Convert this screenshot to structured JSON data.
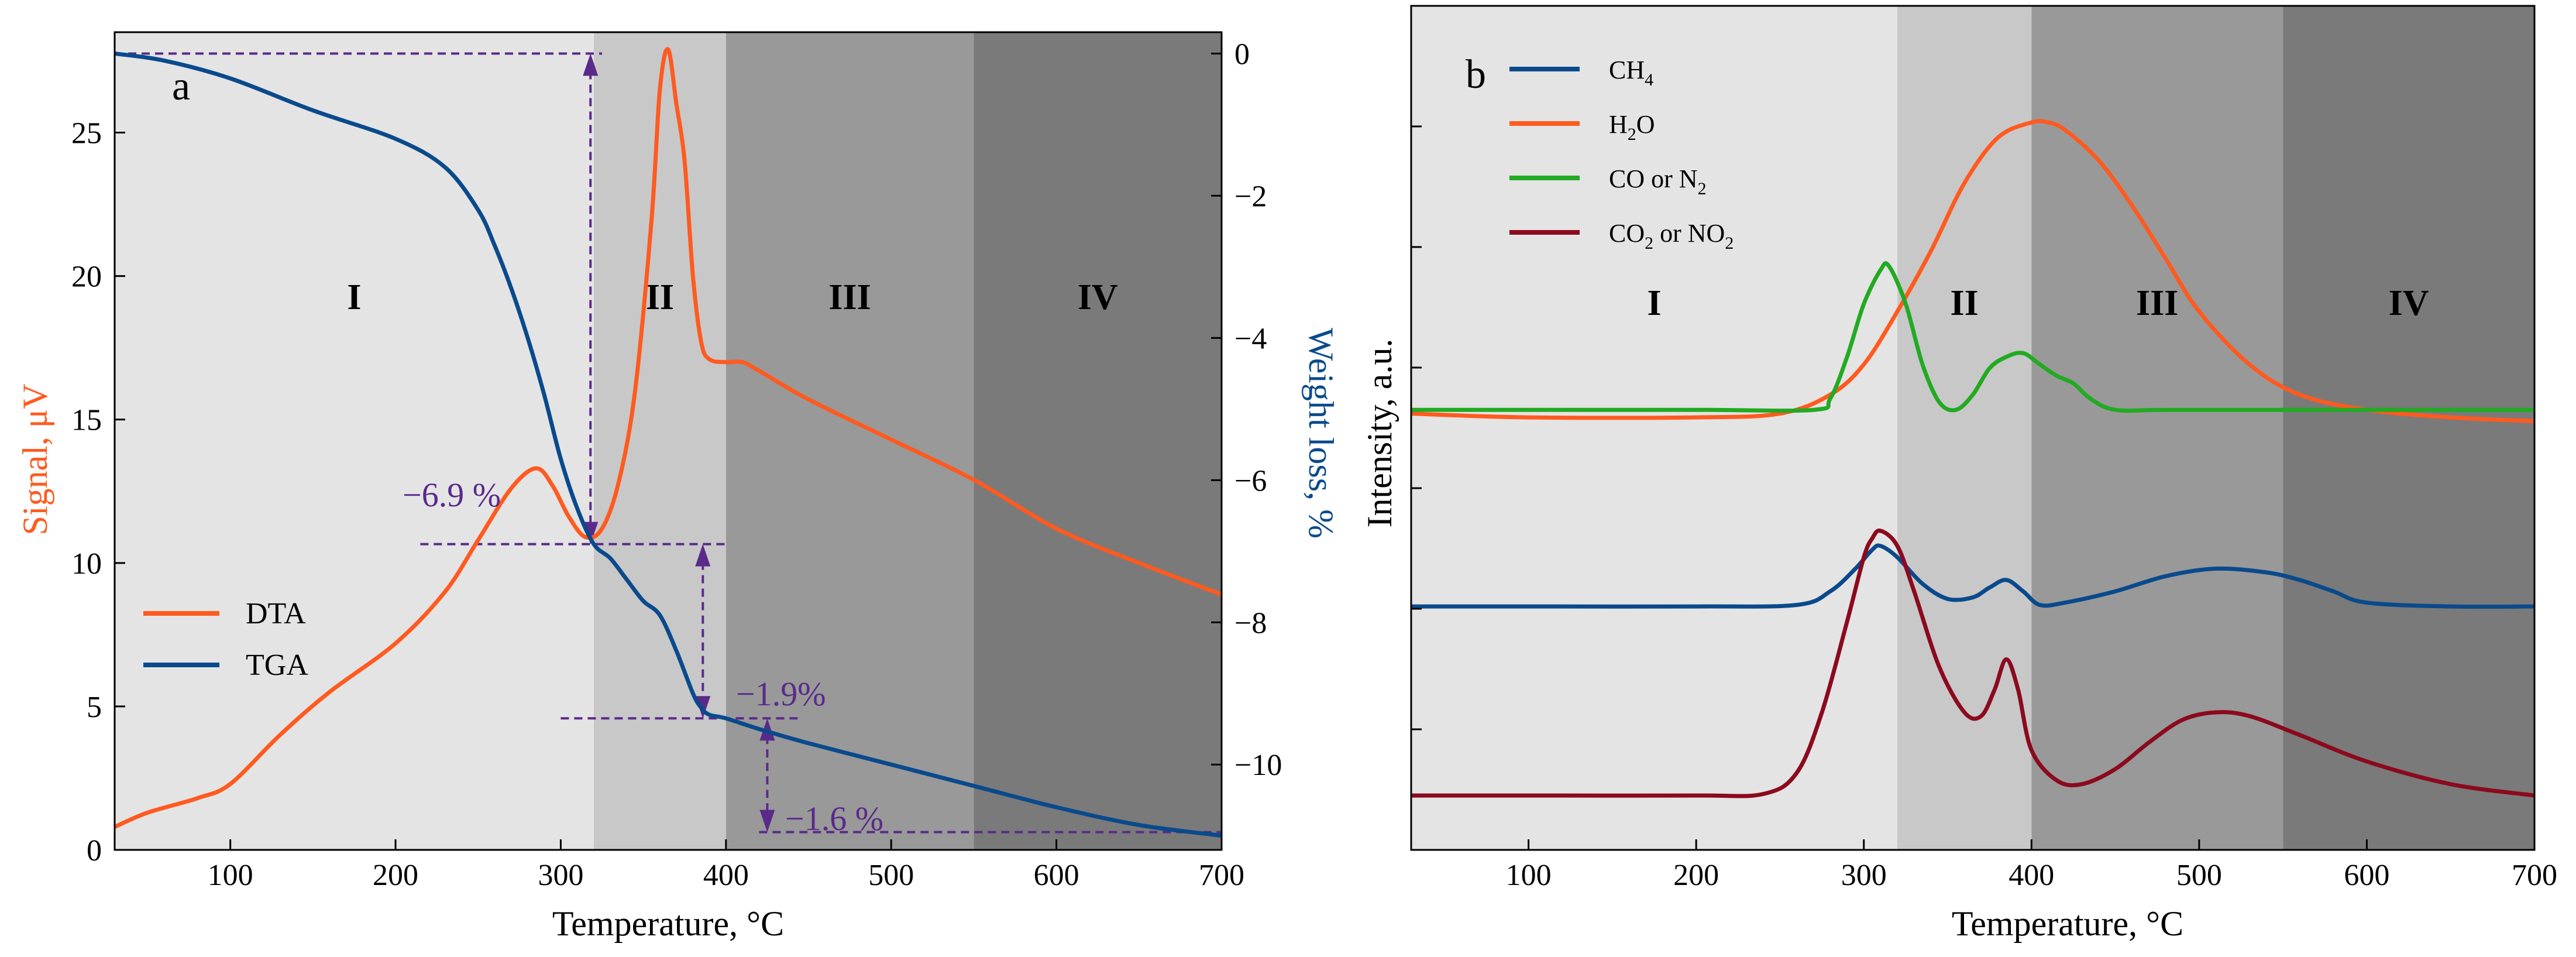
{
  "chart_data": [
    {
      "panel": "a",
      "type": "line",
      "xlabel": "Temperature, °C",
      "ylabel_left": "Signal, μV",
      "ylabel_right": "Weight loss, %",
      "xlim": [
        30,
        700
      ],
      "ylim_left": [
        0,
        28.5
      ],
      "ylim_right": [
        -11.2,
        0.3
      ],
      "x_ticks": [
        100,
        200,
        300,
        400,
        500,
        600,
        700
      ],
      "y_ticks_left": [
        0,
        5,
        10,
        15,
        20,
        25
      ],
      "y_ticks_right": [
        0,
        -2,
        -4,
        -6,
        -8,
        -10
      ],
      "regions": [
        {
          "label": "I",
          "from": 30,
          "to": 320,
          "color": "#e4e4e4"
        },
        {
          "label": "II",
          "from": 320,
          "to": 400,
          "color": "#c8c8c8"
        },
        {
          "label": "III",
          "from": 400,
          "to": 550,
          "color": "#999999"
        },
        {
          "label": "IV",
          "from": 550,
          "to": 700,
          "color": "#7a7a7a"
        }
      ],
      "legend": [
        "DTA",
        "TGA"
      ],
      "series": [
        {
          "name": "DTA",
          "axis": "left",
          "color": "#ff5a1f",
          "x": [
            30,
            50,
            80,
            100,
            130,
            160,
            200,
            230,
            250,
            270,
            285,
            295,
            305,
            315,
            325,
            335,
            345,
            355,
            360,
            365,
            370,
            375,
            380,
            385,
            390,
            400,
            410,
            420,
            450,
            500,
            550,
            600,
            650,
            700
          ],
          "y": [
            0.8,
            1.3,
            1.8,
            2.3,
            4.0,
            5.5,
            7.2,
            9.0,
            10.8,
            12.6,
            13.3,
            12.7,
            11.6,
            10.9,
            11.2,
            12.8,
            16.0,
            22.0,
            26.5,
            27.9,
            26.0,
            24.0,
            20.0,
            17.7,
            17.1,
            17.0,
            17.0,
            16.7,
            15.7,
            14.3,
            12.9,
            11.2,
            10.0,
            8.9
          ]
        },
        {
          "name": "TGA",
          "axis": "right",
          "color": "#0a4a8c",
          "x": [
            30,
            60,
            100,
            150,
            200,
            230,
            250,
            260,
            270,
            280,
            290,
            300,
            310,
            320,
            330,
            340,
            350,
            360,
            370,
            380,
            385,
            390,
            400,
            420,
            450,
            500,
            550,
            600,
            650,
            700
          ],
          "y": [
            0,
            -0.1,
            -0.35,
            -0.8,
            -1.2,
            -1.6,
            -2.2,
            -2.7,
            -3.3,
            -4.0,
            -4.8,
            -5.7,
            -6.4,
            -6.9,
            -7.1,
            -7.4,
            -7.7,
            -7.9,
            -8.4,
            -9.0,
            -9.2,
            -9.3,
            -9.35,
            -9.5,
            -9.7,
            -10.0,
            -10.3,
            -10.6,
            -10.85,
            -11.0
          ]
        }
      ],
      "annotations": [
        "−6.9 %",
        "−1.9%",
        "−1.6 %"
      ]
    },
    {
      "panel": "b",
      "type": "line",
      "xlabel": "Temperature, °C",
      "ylabel": "Intensity, a.u.",
      "xlim": [
        30,
        700
      ],
      "ylim": [
        0,
        10
      ],
      "x_ticks": [
        100,
        200,
        300,
        400,
        500,
        600,
        700
      ],
      "regions": [
        {
          "label": "I",
          "from": 30,
          "to": 320,
          "color": "#e4e4e4"
        },
        {
          "label": "II",
          "from": 320,
          "to": 400,
          "color": "#c8c8c8"
        },
        {
          "label": "III",
          "from": 400,
          "to": 550,
          "color": "#999999"
        },
        {
          "label": "IV",
          "from": 550,
          "to": 700,
          "color": "#7a7a7a"
        }
      ],
      "legend": [
        {
          "main": "CH",
          "sub": "4",
          "color": "#0a4a8c"
        },
        {
          "main": "H",
          "sub": "2",
          "tail": "O",
          "color": "#ff5a1f"
        },
        {
          "main": "CO or N",
          "sub": "2",
          "color": "#22aa22"
        },
        {
          "main": "CO",
          "sub": "2",
          "tail": " or NO",
          "sub2": "2",
          "color": "#8b0a1e"
        }
      ],
      "series": [
        {
          "name": "CH4",
          "color": "#0a4a8c",
          "x": [
            30,
            100,
            200,
            260,
            280,
            295,
            305,
            310,
            320,
            335,
            350,
            365,
            375,
            385,
            395,
            405,
            420,
            450,
            480,
            510,
            540,
            560,
            580,
            600,
            650,
            700
          ],
          "y": [
            2.6,
            2.6,
            2.6,
            2.62,
            2.8,
            3.1,
            3.35,
            3.4,
            3.25,
            2.9,
            2.7,
            2.72,
            2.85,
            2.95,
            2.8,
            2.62,
            2.65,
            2.8,
            3.0,
            3.1,
            3.05,
            2.95,
            2.8,
            2.65,
            2.6,
            2.6
          ]
        },
        {
          "name": "H2O",
          "color": "#ff5a1f",
          "x": [
            30,
            100,
            200,
            250,
            280,
            300,
            320,
            340,
            360,
            380,
            400,
            410,
            420,
            440,
            460,
            480,
            500,
            530,
            560,
            600,
            650,
            700
          ],
          "y": [
            5.15,
            5.1,
            5.1,
            5.15,
            5.4,
            5.8,
            6.5,
            7.3,
            8.2,
            8.8,
            9.0,
            9.0,
            8.9,
            8.5,
            7.9,
            7.2,
            6.5,
            5.8,
            5.4,
            5.2,
            5.1,
            5.05
          ]
        },
        {
          "name": "CO or N2",
          "color": "#22aa22",
          "x": [
            30,
            100,
            200,
            270,
            280,
            290,
            300,
            310,
            315,
            325,
            335,
            345,
            355,
            365,
            375,
            385,
            395,
            405,
            415,
            425,
            435,
            450,
            480,
            550,
            700
          ],
          "y": [
            5.2,
            5.2,
            5.2,
            5.2,
            5.35,
            5.9,
            6.6,
            7.05,
            7.1,
            6.6,
            5.8,
            5.3,
            5.2,
            5.4,
            5.75,
            5.9,
            5.95,
            5.8,
            5.65,
            5.55,
            5.35,
            5.2,
            5.2,
            5.2,
            5.2
          ]
        },
        {
          "name": "CO2 or NO2",
          "color": "#8b0a1e",
          "x": [
            30,
            100,
            200,
            240,
            260,
            275,
            290,
            300,
            305,
            310,
            320,
            330,
            345,
            360,
            370,
            378,
            385,
            392,
            400,
            415,
            430,
            450,
            470,
            490,
            510,
            530,
            560,
            600,
            650,
            700
          ],
          "y": [
            0.1,
            0.1,
            0.1,
            0.12,
            0.4,
            1.2,
            2.4,
            3.25,
            3.5,
            3.6,
            3.4,
            2.8,
            1.8,
            1.2,
            1.15,
            1.5,
            1.9,
            1.5,
            0.7,
            0.3,
            0.25,
            0.45,
            0.8,
            1.1,
            1.2,
            1.15,
            0.9,
            0.55,
            0.25,
            0.1
          ]
        }
      ]
    }
  ],
  "panel_a": {
    "letter": "a",
    "xlabel": "Temperature, °C",
    "ylabel_left": "Signal, μV",
    "ylabel_right": "Weight loss, %",
    "legend": [
      "DTA",
      "TGA"
    ],
    "annotations": [
      "−6.9 %",
      "−1.9%",
      "−1.6 %"
    ],
    "regions": [
      "I",
      "II",
      "III",
      "IV"
    ]
  },
  "panel_b": {
    "letter": "b",
    "xlabel": "Temperature, °C",
    "ylabel": "Intensity, a.u.",
    "regions": [
      "I",
      "II",
      "III",
      "IV"
    ]
  },
  "colors": {
    "dta": "#ff5a1f",
    "tga": "#0a4a8c",
    "co": "#22aa22",
    "co2": "#8b0a1e",
    "annotation": "#5a2a8a"
  }
}
